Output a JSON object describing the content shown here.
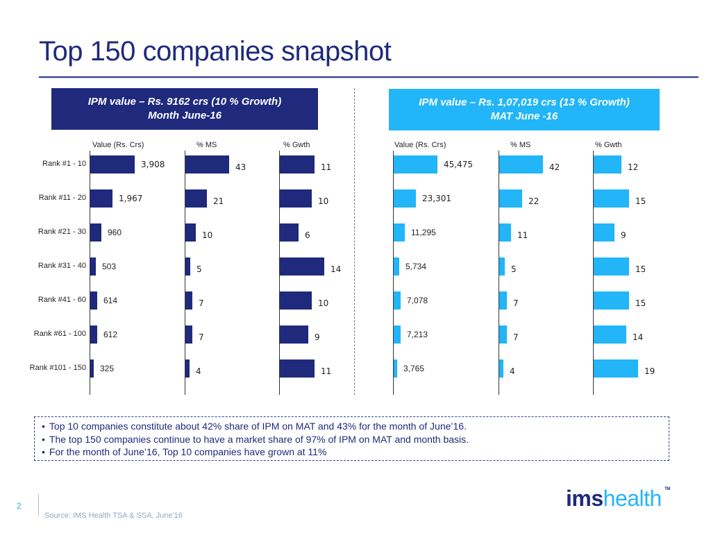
{
  "slide": {
    "title": "Top 150 companies snapshot",
    "page_number": "2",
    "source": "Source: IMS Health TSA & SSA, June'16",
    "logo": {
      "part1": "ims",
      "part2": "health",
      "tm": "TM"
    }
  },
  "panels": {
    "left": {
      "line1": "IPM value – Rs. 9162 crs (10 % Growth)",
      "line2": "Month  June-16",
      "color": "#1f2a7c"
    },
    "right": {
      "line1": "IPM value – Rs. 1,07,019  crs (13 % Growth)",
      "line2": "MAT  June -16",
      "color": "#22b5f8"
    }
  },
  "notes": [
    "Top 10 companies constitute about 42% share of IPM on MAT and 43% for the month of June’16.",
    "The top 150 companies continue to have a market share of 97% of IPM on MAT and month basis.",
    "For the month of June’16, Top 10 companies have grown at 11%"
  ],
  "chart_data": [
    {
      "type": "bar",
      "orientation": "horizontal",
      "title": "Month June-16",
      "categories": [
        "Rank #1 - 10",
        "Rank #11 - 20",
        "Rank #21 - 30",
        "Rank #31 - 40",
        "Rank #41 - 60",
        "Rank #61 - 100",
        "Rank #101 - 150"
      ],
      "series": [
        {
          "name": "Value (Rs. Crs)",
          "values": [
            3908,
            1967,
            960,
            503,
            614,
            612,
            325
          ],
          "labels": [
            "3,908",
            "1,967",
            "960",
            "503",
            "614",
            "612",
            "325"
          ],
          "max": 3908,
          "color": "#1f2a7c"
        },
        {
          "name": "% MS",
          "values": [
            43,
            21,
            10,
            5,
            7,
            7,
            4
          ],
          "labels": [
            "43",
            "21",
            "10",
            "5",
            "7",
            "7",
            "4"
          ],
          "max": 43,
          "color": "#1f2a7c"
        },
        {
          "name": "% Gwth",
          "values": [
            11,
            10,
            6,
            14,
            10,
            9,
            11
          ],
          "labels": [
            "11",
            "10",
            "6",
            "14",
            "10",
            "9",
            "11"
          ],
          "max": 14,
          "color": "#1f2a7c"
        }
      ]
    },
    {
      "type": "bar",
      "orientation": "horizontal",
      "title": "MAT June -16",
      "categories": [
        "Rank #1 - 10",
        "Rank #11 - 20",
        "Rank #21 - 30",
        "Rank #31 - 40",
        "Rank #41 - 60",
        "Rank #61 - 100",
        "Rank #101 - 150"
      ],
      "series": [
        {
          "name": "Value (Rs. Crs)",
          "values": [
            45475,
            23301,
            11295,
            5734,
            7078,
            7213,
            3765
          ],
          "labels": [
            "45,475",
            "23,301",
            "11,295",
            "5,734",
            "7,078",
            "7,213",
            "3,765"
          ],
          "max": 45475,
          "color": "#22b5f8"
        },
        {
          "name": "% MS",
          "values": [
            42,
            22,
            11,
            5,
            7,
            7,
            4
          ],
          "labels": [
            "42",
            "22",
            "11",
            "5",
            "7",
            "7",
            "4"
          ],
          "max": 42,
          "color": "#22b5f8"
        },
        {
          "name": "% Gwth",
          "values": [
            12,
            15,
            9,
            15,
            15,
            14,
            19
          ],
          "labels": [
            "12",
            "15",
            "9",
            "15",
            "15",
            "14",
            "19"
          ],
          "max": 19,
          "color": "#22b5f8"
        }
      ]
    }
  ]
}
